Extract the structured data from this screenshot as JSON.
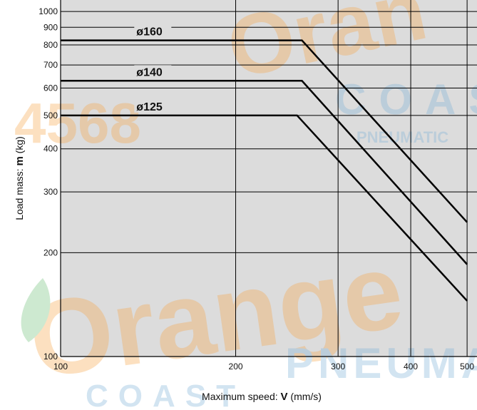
{
  "chart_data": {
    "type": "line",
    "title": "",
    "xlabel_prefix": "Maximum speed: ",
    "xlabel_symbol": "V",
    "xlabel_unit": " (mm/s)",
    "ylabel_prefix": "Load mass: ",
    "ylabel_symbol": "m",
    "ylabel_unit": " (kg)",
    "x_scale": "log",
    "y_scale": "log",
    "xlim": [
      100,
      520
    ],
    "ylim": [
      100,
      1080
    ],
    "grid": true,
    "x_ticks": [
      100,
      200,
      300,
      400,
      500
    ],
    "x_tick_labels": [
      "100",
      "200",
      "300",
      "400",
      "500"
    ],
    "y_ticks": [
      100,
      200,
      300,
      400,
      500,
      600,
      700,
      800,
      900,
      1000
    ],
    "y_tick_labels": [
      "100",
      "200",
      "300",
      "400",
      "500",
      "600",
      "700",
      "800",
      "900",
      "1000"
    ],
    "series": [
      {
        "name": "ø160",
        "x": [
          100,
          260,
          500
        ],
        "y": [
          825,
          825,
          245
        ]
      },
      {
        "name": "ø140",
        "x": [
          100,
          260,
          500
        ],
        "y": [
          630,
          630,
          185
        ]
      },
      {
        "name": "ø125",
        "x": [
          100,
          255,
          500
        ],
        "y": [
          500,
          500,
          145
        ]
      }
    ]
  },
  "colors": {
    "plot_background": "#dcdcdc",
    "grid": "#000000",
    "series_line": "#000000",
    "watermark_orange": "#f6a54a",
    "watermark_blue": "#7fb2d8"
  }
}
